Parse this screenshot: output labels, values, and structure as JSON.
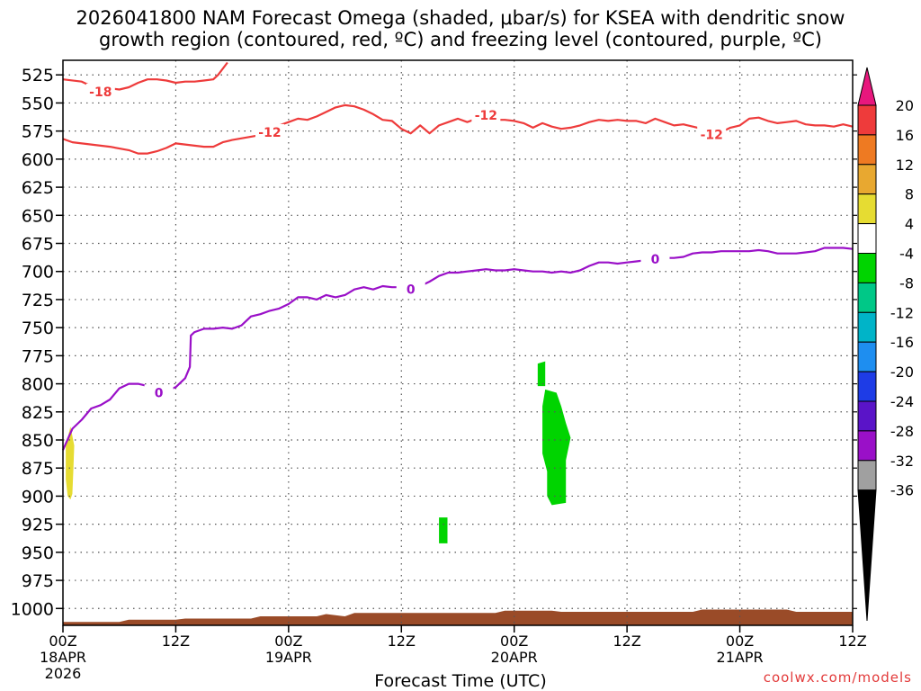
{
  "title": {
    "line1": "2026041800 NAM Forecast Omega (shaded, μbar/s) for KSEA with dendritic snow",
    "line2": "growth region (contoured, red, ºC) and freezing level (contoured, purple, ºC)"
  },
  "credit": "coolwx.com/models",
  "chart_data": {
    "type": "contour-time-height",
    "xlabel": "Forecast Time (UTC)",
    "ylabel": "",
    "xlim_hours": [
      0,
      84
    ],
    "ylim_hpa": [
      1015,
      512
    ],
    "y_ticks": [
      525,
      550,
      575,
      600,
      625,
      650,
      675,
      700,
      725,
      750,
      775,
      800,
      825,
      850,
      875,
      900,
      925,
      950,
      975,
      1000
    ],
    "x_ticks": [
      {
        "h": 0,
        "l1": "00Z",
        "l2": "18APR",
        "l3": "2026"
      },
      {
        "h": 12,
        "l1": "12Z",
        "l2": "",
        "l3": ""
      },
      {
        "h": 24,
        "l1": "00Z",
        "l2": "19APR",
        "l3": ""
      },
      {
        "h": 36,
        "l1": "12Z",
        "l2": "",
        "l3": ""
      },
      {
        "h": 48,
        "l1": "00Z",
        "l2": "20APR",
        "l3": ""
      },
      {
        "h": 60,
        "l1": "12Z",
        "l2": "",
        "l3": ""
      },
      {
        "h": 72,
        "l1": "00Z",
        "l2": "21APR",
        "l3": ""
      },
      {
        "h": 84,
        "l1": "12Z",
        "l2": "",
        "l3": ""
      }
    ],
    "grid": true,
    "contours": [
      {
        "name": "",
        "value": "-18",
        "color": "#ee3b3b",
        "points": [
          [
            0,
            529
          ],
          [
            2,
            531
          ],
          [
            3,
            535
          ],
          [
            4,
            538
          ],
          [
            5,
            537
          ],
          [
            6,
            538
          ],
          [
            7,
            536
          ],
          [
            8,
            532
          ],
          [
            9,
            529
          ],
          [
            10,
            529
          ],
          [
            11,
            530
          ],
          [
            12,
            532
          ],
          [
            13,
            531
          ],
          [
            14,
            531
          ],
          [
            15,
            530
          ],
          [
            16,
            529
          ],
          [
            16.5,
            525
          ],
          [
            17.5,
            514
          ]
        ],
        "labels": [
          {
            "h": 4,
            "p": 540
          }
        ]
      },
      {
        "name": "",
        "value": "-12",
        "color": "#ee3b3b",
        "points": [
          [
            0,
            582
          ],
          [
            1,
            585
          ],
          [
            3,
            587
          ],
          [
            5,
            589
          ],
          [
            7,
            592
          ],
          [
            8,
            595
          ],
          [
            9,
            595
          ],
          [
            10,
            593
          ],
          [
            11,
            590
          ],
          [
            12,
            586
          ],
          [
            13,
            587
          ],
          [
            15,
            589
          ],
          [
            16,
            589
          ],
          [
            17,
            585
          ],
          [
            18,
            583
          ],
          [
            20,
            580
          ],
          [
            22,
            577
          ],
          [
            23,
            570
          ],
          [
            24,
            567
          ],
          [
            25,
            564
          ],
          [
            26,
            565
          ],
          [
            27,
            562
          ],
          [
            28,
            558
          ],
          [
            29,
            554
          ],
          [
            30,
            552
          ],
          [
            31,
            553
          ],
          [
            32,
            556
          ],
          [
            33,
            560
          ],
          [
            34,
            565
          ],
          [
            35,
            566
          ],
          [
            36,
            573
          ],
          [
            37,
            577
          ],
          [
            38,
            570
          ],
          [
            39,
            577
          ],
          [
            40,
            570
          ],
          [
            41,
            567
          ],
          [
            42,
            564
          ],
          [
            43,
            567
          ],
          [
            44,
            564
          ],
          [
            45,
            566
          ],
          [
            46,
            565
          ],
          [
            47,
            565
          ],
          [
            48,
            566
          ],
          [
            49,
            568
          ],
          [
            50,
            572
          ],
          [
            51,
            568
          ],
          [
            52,
            571
          ],
          [
            53,
            573
          ],
          [
            54,
            572
          ],
          [
            55,
            570
          ],
          [
            56,
            567
          ],
          [
            57,
            565
          ],
          [
            58,
            566
          ],
          [
            59,
            565
          ],
          [
            60,
            566
          ],
          [
            61,
            566
          ],
          [
            62,
            568
          ],
          [
            63,
            564
          ],
          [
            64,
            567
          ],
          [
            65,
            570
          ],
          [
            66,
            569
          ],
          [
            67,
            571
          ],
          [
            68,
            573
          ],
          [
            69,
            578
          ],
          [
            70,
            576
          ],
          [
            71,
            572
          ],
          [
            72,
            570
          ],
          [
            73,
            564
          ],
          [
            74,
            563
          ],
          [
            75,
            566
          ],
          [
            76,
            568
          ],
          [
            77,
            567
          ],
          [
            78,
            566
          ],
          [
            79,
            569
          ],
          [
            80,
            570
          ],
          [
            81,
            570
          ],
          [
            82,
            571
          ],
          [
            83,
            569
          ],
          [
            84,
            571
          ]
        ],
        "labels": [
          {
            "h": 22,
            "p": 576
          },
          {
            "h": 45,
            "p": 561
          },
          {
            "h": 69,
            "p": 578
          }
        ]
      },
      {
        "name": "",
        "value": "0",
        "color": "#9a10c8",
        "points": [
          [
            0,
            859
          ],
          [
            1,
            840
          ],
          [
            2,
            832
          ],
          [
            3,
            822
          ],
          [
            4,
            819
          ],
          [
            5,
            814
          ],
          [
            6,
            804
          ],
          [
            7,
            800
          ],
          [
            8,
            800
          ],
          [
            9,
            802
          ],
          [
            10,
            808
          ],
          [
            11,
            806
          ],
          [
            12,
            803
          ],
          [
            13,
            795
          ],
          [
            13.5,
            785
          ],
          [
            13.6,
            757
          ],
          [
            14,
            754
          ],
          [
            15,
            751
          ],
          [
            16,
            751
          ],
          [
            17,
            750
          ],
          [
            18,
            751
          ],
          [
            19,
            748
          ],
          [
            20,
            740
          ],
          [
            21,
            738
          ],
          [
            22,
            735
          ],
          [
            23,
            733
          ],
          [
            24,
            729
          ],
          [
            25,
            723
          ],
          [
            26,
            723
          ],
          [
            27,
            725
          ],
          [
            28,
            721
          ],
          [
            29,
            723
          ],
          [
            30,
            721
          ],
          [
            31,
            716
          ],
          [
            32,
            714
          ],
          [
            33,
            716
          ],
          [
            34,
            713
          ],
          [
            35,
            714
          ],
          [
            36,
            714
          ],
          [
            37,
            713
          ],
          [
            38,
            713
          ],
          [
            39,
            709
          ],
          [
            40,
            704
          ],
          [
            41,
            701
          ],
          [
            42,
            701
          ],
          [
            43,
            700
          ],
          [
            44,
            699
          ],
          [
            45,
            698
          ],
          [
            46,
            699
          ],
          [
            47,
            699
          ],
          [
            48,
            698
          ],
          [
            49,
            699
          ],
          [
            50,
            700
          ],
          [
            51,
            700
          ],
          [
            52,
            701
          ],
          [
            53,
            700
          ],
          [
            54,
            701
          ],
          [
            55,
            699
          ],
          [
            56,
            695
          ],
          [
            57,
            692
          ],
          [
            58,
            692
          ],
          [
            59,
            693
          ],
          [
            60,
            692
          ],
          [
            61,
            691
          ],
          [
            62,
            690
          ],
          [
            63,
            690
          ],
          [
            64,
            688
          ],
          [
            65,
            688
          ],
          [
            66,
            687
          ],
          [
            67,
            684
          ],
          [
            68,
            683
          ],
          [
            69,
            683
          ],
          [
            70,
            682
          ],
          [
            71,
            682
          ],
          [
            72,
            682
          ],
          [
            73,
            682
          ],
          [
            74,
            681
          ],
          [
            75,
            682
          ],
          [
            76,
            684
          ],
          [
            77,
            684
          ],
          [
            78,
            684
          ],
          [
            79,
            683
          ],
          [
            80,
            682
          ],
          [
            81,
            679
          ],
          [
            82,
            679
          ],
          [
            83,
            679
          ],
          [
            84,
            680
          ]
        ],
        "labels": [
          {
            "h": 10.2,
            "p": 808
          },
          {
            "h": 37,
            "p": 716
          },
          {
            "h": 63,
            "p": 689
          }
        ]
      }
    ],
    "shaded_regions": [
      {
        "name": "",
        "value": "4 to 8",
        "color": "#e6dc32",
        "polygon": [
          [
            0.3,
            855
          ],
          [
            0.8,
            838
          ],
          [
            1.2,
            855
          ],
          [
            1.1,
            878
          ],
          [
            1.0,
            898
          ],
          [
            0.8,
            903
          ],
          [
            0.5,
            900
          ],
          [
            0.3,
            885
          ]
        ]
      },
      {
        "name": "",
        "value": "-4 to -8",
        "color": "#00d400",
        "polygon": [
          [
            50.5,
            782
          ],
          [
            51.3,
            780
          ],
          [
            51.3,
            802
          ],
          [
            50.5,
            802
          ]
        ]
      },
      {
        "name": "",
        "value": "-4 to -8",
        "color": "#00d400",
        "polygon": [
          [
            51.3,
            805
          ],
          [
            52.5,
            808
          ],
          [
            53,
            820
          ],
          [
            53.5,
            835
          ],
          [
            54,
            848
          ],
          [
            53.5,
            868
          ],
          [
            53.5,
            906
          ],
          [
            52.0,
            908
          ],
          [
            51.5,
            900
          ],
          [
            51.5,
            878
          ],
          [
            51.0,
            862
          ],
          [
            51.0,
            820
          ]
        ]
      },
      {
        "name": "",
        "value": "-4 to -8",
        "color": "#00d400",
        "polygon": [
          [
            40.0,
            919
          ],
          [
            40.9,
            919
          ],
          [
            40.9,
            942
          ],
          [
            40.0,
            942
          ]
        ]
      }
    ],
    "terrain": {
      "color": "#9a4b28",
      "points": [
        [
          0,
          1012
        ],
        [
          6,
          1012
        ],
        [
          7,
          1010
        ],
        [
          12,
          1010
        ],
        [
          13,
          1009
        ],
        [
          20,
          1009
        ],
        [
          21,
          1007
        ],
        [
          27,
          1007
        ],
        [
          28,
          1005
        ],
        [
          30,
          1007
        ],
        [
          31,
          1004
        ],
        [
          46,
          1004
        ],
        [
          47,
          1002
        ],
        [
          52,
          1002
        ],
        [
          53,
          1003
        ],
        [
          67,
          1003
        ],
        [
          68,
          1001
        ],
        [
          77,
          1001
        ],
        [
          78,
          1003
        ],
        [
          84,
          1003
        ]
      ]
    },
    "colorbar": {
      "labels": [
        "20",
        "16",
        "12",
        "8",
        "4",
        "-4",
        "-8",
        "-12",
        "-16",
        "-20",
        "-24",
        "-28",
        "-32",
        "-36"
      ],
      "top_color": "#e8177d",
      "bottom_color": "#000000",
      "colors": [
        "#ee3b3b",
        "#ee7a22",
        "#e8a830",
        "#e6dc32",
        "#ffffff",
        "#00d400",
        "#00c887",
        "#00b4c8",
        "#1e8ef0",
        "#1e3ce6",
        "#5a14c8",
        "#9a10c8",
        "#a0a0a0"
      ]
    }
  }
}
